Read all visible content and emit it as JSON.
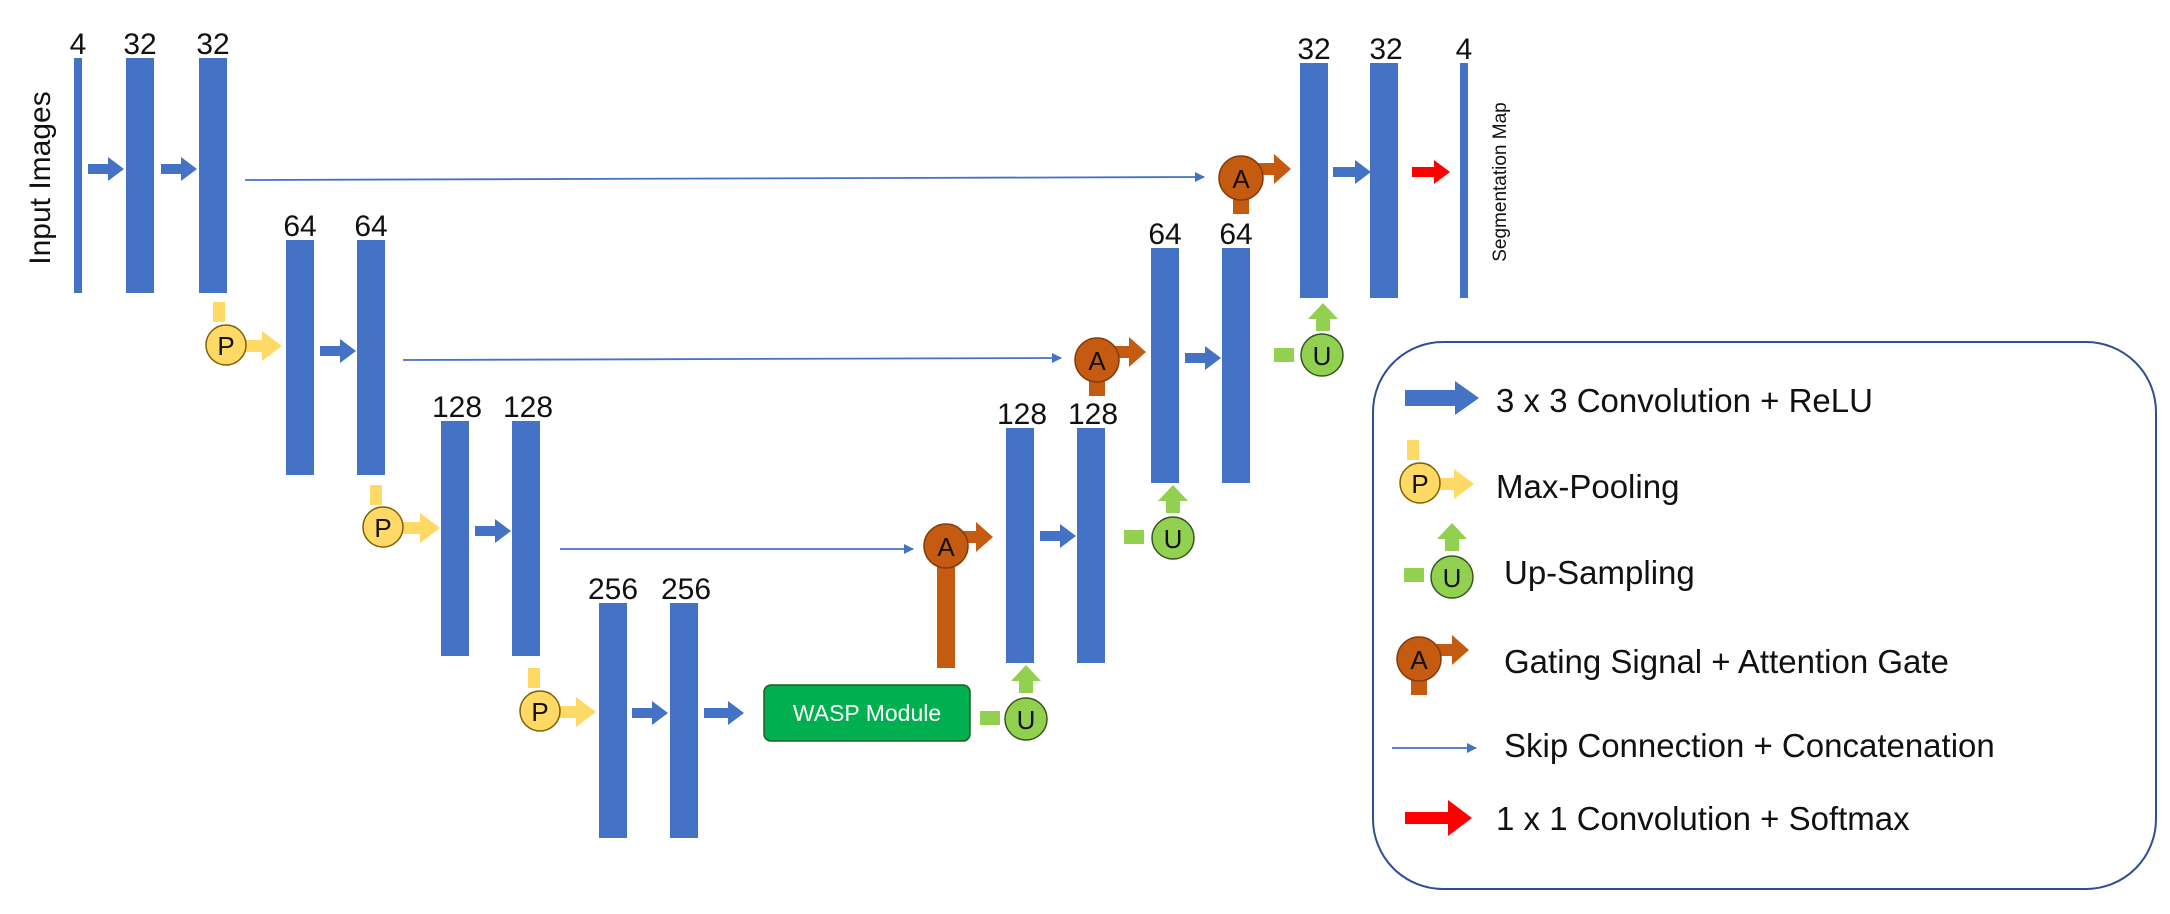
{
  "input_label": "Input Images",
  "output_label": "Segmentation Map",
  "wasp_label": "WASP Module",
  "channels": {
    "in": "4",
    "enc1a": "32",
    "enc1b": "32",
    "enc2a": "64",
    "enc2b": "64",
    "enc3a": "128",
    "enc3b": "128",
    "bott_a": "256",
    "bott_b": "256",
    "dec3a": "128",
    "dec3b": "128",
    "dec2a": "64",
    "dec2b": "64",
    "dec1a": "32",
    "dec1b": "32",
    "out": "4"
  },
  "symbols": {
    "pool": "P",
    "up": "U",
    "attn": "A"
  },
  "legend": {
    "conv": "3 x 3 Convolution + ReLU",
    "pool": "Max-Pooling",
    "up": "Up-Sampling",
    "attn": "Gating Signal + Attention Gate",
    "skip": "Skip Connection + Concatenation",
    "final": "1 x 1 Convolution + Softmax"
  },
  "colors": {
    "block": "#4472C4",
    "pool": "#FFD966",
    "pool_circle": "#FFD966",
    "up": "#92D050",
    "attn": "#C55A11",
    "wasp": "#00B050",
    "final": "#FF0000",
    "skip": "#4472C4"
  }
}
